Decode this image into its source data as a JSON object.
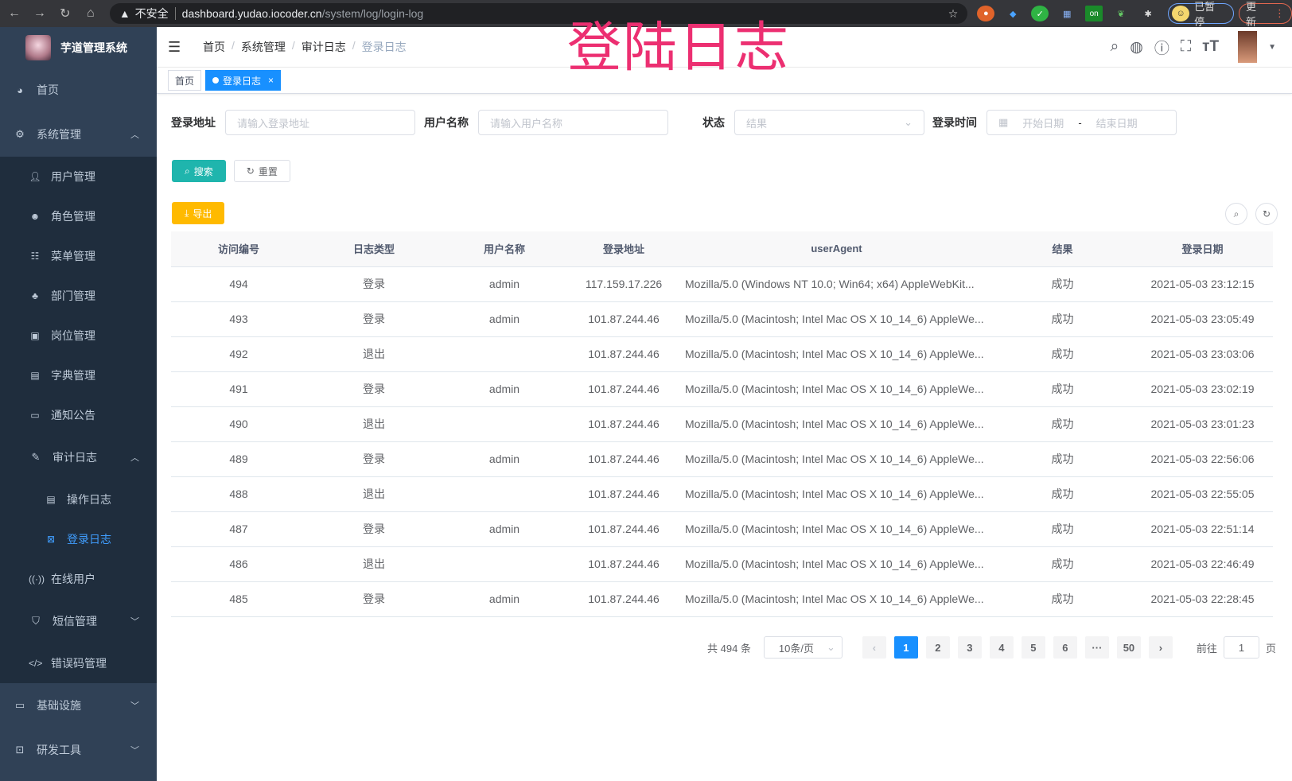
{
  "browser": {
    "insecure": "不安全",
    "url_host": "dashboard.yudao.iocoder.cn",
    "url_path": "/system/log/login-log",
    "paused": "已暂停",
    "update": "更新",
    "ext_badge": "on"
  },
  "overlay_title": "登陆日志",
  "sidebar": {
    "title": "芋道管理系统",
    "items": [
      {
        "label": "首页",
        "icon": "dashboard-icon"
      },
      {
        "label": "系统管理",
        "icon": "gear-icon",
        "expanded": true,
        "children": [
          {
            "label": "用户管理",
            "icon": "user-icon"
          },
          {
            "label": "角色管理",
            "icon": "peoples-icon"
          },
          {
            "label": "菜单管理",
            "icon": "tree-table-icon"
          },
          {
            "label": "部门管理",
            "icon": "tree-icon"
          },
          {
            "label": "岗位管理",
            "icon": "post-icon"
          },
          {
            "label": "字典管理",
            "icon": "dict-icon"
          },
          {
            "label": "通知公告",
            "icon": "message-icon"
          },
          {
            "label": "审计日志",
            "icon": "log-icon",
            "expanded": true,
            "children": [
              {
                "label": "操作日志",
                "icon": "form-icon"
              },
              {
                "label": "登录日志",
                "icon": "logininfor-icon",
                "active": true
              }
            ]
          },
          {
            "label": "在线用户",
            "icon": "online-icon"
          },
          {
            "label": "短信管理",
            "icon": "validCode-icon"
          },
          {
            "label": "错误码管理",
            "icon": "code-icon"
          }
        ]
      },
      {
        "label": "基础设施",
        "icon": "monitor-icon"
      },
      {
        "label": "研发工具",
        "icon": "tool-icon"
      }
    ]
  },
  "breadcrumb": [
    "首页",
    "系统管理",
    "审计日志",
    "登录日志"
  ],
  "tags": [
    {
      "label": "首页"
    },
    {
      "label": "登录日志",
      "active": true,
      "close": "×"
    }
  ],
  "filters": {
    "address_label": "登录地址",
    "address_placeholder": "请输入登录地址",
    "username_label": "用户名称",
    "username_placeholder": "请输入用户名称",
    "status_label": "状态",
    "status_placeholder": "结果",
    "time_label": "登录时间",
    "start_placeholder": "开始日期",
    "range_sep": "-",
    "end_placeholder": "结束日期"
  },
  "buttons": {
    "search": "搜索",
    "reset": "重置",
    "export": "导出"
  },
  "table": {
    "columns": [
      "访问编号",
      "日志类型",
      "用户名称",
      "登录地址",
      "userAgent",
      "结果",
      "登录日期"
    ],
    "rows": [
      [
        "494",
        "登录",
        "admin",
        "117.159.17.226",
        "Mozilla/5.0 (Windows NT 10.0; Win64; x64) AppleWebKit...",
        "成功",
        "2021-05-03 23:12:15"
      ],
      [
        "493",
        "登录",
        "admin",
        "101.87.244.46",
        "Mozilla/5.0 (Macintosh; Intel Mac OS X 10_14_6) AppleWe...",
        "成功",
        "2021-05-03 23:05:49"
      ],
      [
        "492",
        "退出",
        "",
        "101.87.244.46",
        "Mozilla/5.0 (Macintosh; Intel Mac OS X 10_14_6) AppleWe...",
        "成功",
        "2021-05-03 23:03:06"
      ],
      [
        "491",
        "登录",
        "admin",
        "101.87.244.46",
        "Mozilla/5.0 (Macintosh; Intel Mac OS X 10_14_6) AppleWe...",
        "成功",
        "2021-05-03 23:02:19"
      ],
      [
        "490",
        "退出",
        "",
        "101.87.244.46",
        "Mozilla/5.0 (Macintosh; Intel Mac OS X 10_14_6) AppleWe...",
        "成功",
        "2021-05-03 23:01:23"
      ],
      [
        "489",
        "登录",
        "admin",
        "101.87.244.46",
        "Mozilla/5.0 (Macintosh; Intel Mac OS X 10_14_6) AppleWe...",
        "成功",
        "2021-05-03 22:56:06"
      ],
      [
        "488",
        "退出",
        "",
        "101.87.244.46",
        "Mozilla/5.0 (Macintosh; Intel Mac OS X 10_14_6) AppleWe...",
        "成功",
        "2021-05-03 22:55:05"
      ],
      [
        "487",
        "登录",
        "admin",
        "101.87.244.46",
        "Mozilla/5.0 (Macintosh; Intel Mac OS X 10_14_6) AppleWe...",
        "成功",
        "2021-05-03 22:51:14"
      ],
      [
        "486",
        "退出",
        "",
        "101.87.244.46",
        "Mozilla/5.0 (Macintosh; Intel Mac OS X 10_14_6) AppleWe...",
        "成功",
        "2021-05-03 22:46:49"
      ],
      [
        "485",
        "登录",
        "admin",
        "101.87.244.46",
        "Mozilla/5.0 (Macintosh; Intel Mac OS X 10_14_6) AppleWe...",
        "成功",
        "2021-05-03 22:28:45"
      ]
    ]
  },
  "pagination": {
    "total": "共 494 条",
    "page_size": "10条/页",
    "pages": [
      "1",
      "2",
      "3",
      "4",
      "5",
      "6",
      "···",
      "50"
    ],
    "current": "1",
    "goto_prefix": "前往",
    "goto_value": "1",
    "goto_suffix": "页"
  },
  "colors": {
    "sidebar": "#304156",
    "submenu": "#1f2d3d",
    "active": "#409eff",
    "primary": "#1890ff",
    "search": "#1fb5ad",
    "export": "#ffba00",
    "overlay": "#ec2f71"
  }
}
